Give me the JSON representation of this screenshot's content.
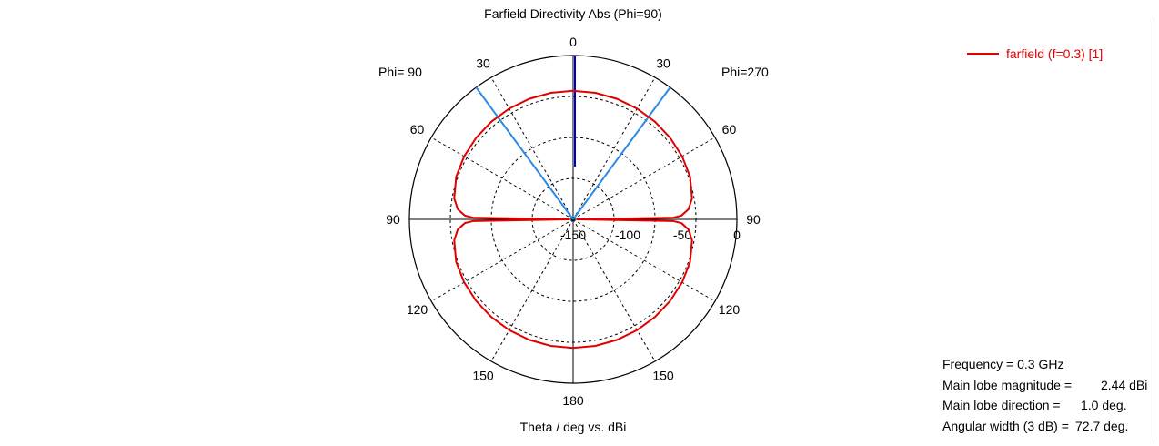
{
  "chart_data": {
    "type": "polar",
    "title": "Farfield Directivity Abs (Phi=90)",
    "xlabel": "Theta / deg vs. dBi",
    "left_label": "Phi= 90",
    "right_label": "Phi=270",
    "angle_ticks": {
      "top": "0",
      "left": [
        "30",
        "60",
        "90",
        "120",
        "150"
      ],
      "right": [
        "30",
        "60",
        "90",
        "120",
        "150"
      ],
      "bottom": "180"
    },
    "radial_ticks": [
      "-150",
      "-100",
      "-50",
      "0"
    ],
    "radial_range": [
      -150,
      0
    ],
    "grid": true,
    "legend_position": "top-right",
    "series": [
      {
        "name": "farfield (f=0.3) [1]",
        "color": "#e00000",
        "theta_deg": [
          0,
          10,
          20,
          30,
          40,
          50,
          60,
          70,
          80,
          85,
          88,
          89,
          90,
          91,
          92,
          95,
          100,
          110,
          120,
          130,
          140,
          150,
          160,
          170,
          180
        ],
        "dbi": [
          2.44,
          2.35,
          2.1,
          1.7,
          1.1,
          0.3,
          -0.7,
          -2.4,
          -7,
          -13,
          -22,
          -32,
          -150,
          -32,
          -22,
          -13,
          -7,
          -2.4,
          -0.7,
          0.3,
          1.1,
          1.7,
          2.1,
          2.35,
          2.44
        ]
      }
    ],
    "markers": {
      "main_lobe_direction_deg": 1.0,
      "main_lobe_color": "#0000cc",
      "beamwidth_3db_deg": 72.7,
      "beamwidth_color": "#2a8ae6"
    }
  },
  "info": [
    {
      "label": "Frequency = 0.3 GHz",
      "value": ""
    },
    {
      "label": "Main lobe magnitude =",
      "value": "2.44 dBi"
    },
    {
      "label": "Main lobe direction =",
      "value": "1.0 deg."
    },
    {
      "label": "Angular width (3 dB) =",
      "value": "72.7 deg."
    }
  ]
}
